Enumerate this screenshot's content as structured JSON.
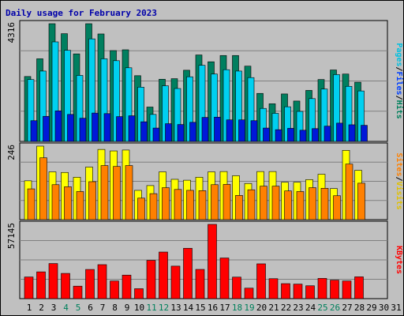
{
  "title": "Daily usage for February 2023",
  "chart_data": [
    {
      "type": "bar",
      "panel": "hits-files-pages",
      "ymax_label": "4316",
      "ylim": [
        0,
        4316
      ],
      "categories": [
        "1",
        "2",
        "3",
        "4",
        "5",
        "6",
        "7",
        "8",
        "9",
        "10",
        "11",
        "12",
        "13",
        "14",
        "15",
        "16",
        "17",
        "18",
        "19",
        "20",
        "21",
        "22",
        "23",
        "24",
        "25",
        "26",
        "27",
        "28",
        "29",
        "30",
        "31"
      ],
      "weekend_days": [
        "4",
        "5",
        "11",
        "12",
        "18",
        "19",
        "25",
        "26"
      ],
      "series": [
        {
          "name": "Hits",
          "color": "#007f5f",
          "values": [
            2380,
            3030,
            4316,
            3950,
            3210,
            4316,
            3940,
            3330,
            3360,
            2410,
            1260,
            2280,
            2300,
            2610,
            3170,
            2920,
            3150,
            3150,
            2760,
            1760,
            1380,
            1740,
            1480,
            1870,
            2270,
            2620,
            2470,
            2170,
            0,
            0,
            0
          ]
        },
        {
          "name": "Files",
          "color": "#00d0f0",
          "values": [
            2270,
            2580,
            3650,
            3340,
            2420,
            3760,
            3030,
            2960,
            2700,
            1990,
            990,
            2040,
            1940,
            2370,
            2790,
            2470,
            2630,
            2580,
            2340,
            1210,
            1030,
            1270,
            1100,
            1570,
            1920,
            2450,
            2020,
            1850,
            0,
            0,
            0
          ]
        },
        {
          "name": "Pages",
          "color": "#0018d8",
          "values": [
            760,
            920,
            1120,
            990,
            850,
            1040,
            1020,
            910,
            940,
            720,
            490,
            650,
            620,
            700,
            880,
            890,
            790,
            790,
            760,
            490,
            430,
            480,
            410,
            470,
            560,
            670,
            610,
            590,
            0,
            0,
            0
          ]
        }
      ]
    },
    {
      "type": "bar",
      "panel": "visits-sites",
      "ymax_label": "246",
      "ylim": [
        0,
        246
      ],
      "categories": [
        "1",
        "2",
        "3",
        "4",
        "5",
        "6",
        "7",
        "8",
        "9",
        "10",
        "11",
        "12",
        "13",
        "14",
        "15",
        "16",
        "17",
        "18",
        "19",
        "20",
        "21",
        "22",
        "23",
        "24",
        "25",
        "26",
        "27",
        "28",
        "29",
        "30",
        "31"
      ],
      "series": [
        {
          "name": "Visits",
          "color": "#ffff00",
          "values": [
            130,
            246,
            160,
            158,
            142,
            176,
            235,
            230,
            233,
            98,
            114,
            160,
            135,
            132,
            142,
            160,
            161,
            147,
            121,
            161,
            161,
            125,
            125,
            134,
            152,
            104,
            232,
            165,
            0,
            0,
            0
          ]
        },
        {
          "name": "Sites",
          "color": "#ff8000",
          "values": [
            103,
            207,
            117,
            110,
            94,
            127,
            181,
            178,
            181,
            72,
            87,
            107,
            101,
            98,
            97,
            117,
            118,
            81,
            100,
            112,
            112,
            96,
            94,
            107,
            105,
            80,
            186,
            122,
            0,
            0,
            0
          ]
        }
      ]
    },
    {
      "type": "bar",
      "panel": "kbytes",
      "ymax_label": "57145",
      "ylim": [
        0,
        57145
      ],
      "categories": [
        "1",
        "2",
        "3",
        "4",
        "5",
        "6",
        "7",
        "8",
        "9",
        "10",
        "11",
        "12",
        "13",
        "14",
        "15",
        "16",
        "17",
        "18",
        "19",
        "20",
        "21",
        "22",
        "23",
        "24",
        "25",
        "26",
        "27",
        "28",
        "29",
        "30",
        "31"
      ],
      "series": [
        {
          "name": "KBytes",
          "color": "#ff0000",
          "values": [
            16660,
            20600,
            27000,
            19410,
            9600,
            22450,
            26150,
            13590,
            18100,
            7640,
            29440,
            35850,
            25000,
            38750,
            22490,
            57145,
            31270,
            16560,
            8060,
            26770,
            15350,
            11540,
            11180,
            9890,
            15570,
            14230,
            13590,
            16770,
            0,
            0,
            0
          ]
        }
      ]
    }
  ],
  "labels": {
    "hits": "Hits",
    "files": "Files",
    "pages": "Pages",
    "visits": "Visits",
    "sites": "Sites",
    "kbytes": "KBytes",
    "sep": "/"
  },
  "colors": {
    "hits_label": "#00805c",
    "files_label": "#0040ff",
    "pages_label": "#00c0e0",
    "visits_label": "#e0c000",
    "sites_label": "#ff8000",
    "kbytes_label": "#ff0000",
    "weekday_tick": "#000000",
    "weekend_tick": "#00805c"
  }
}
